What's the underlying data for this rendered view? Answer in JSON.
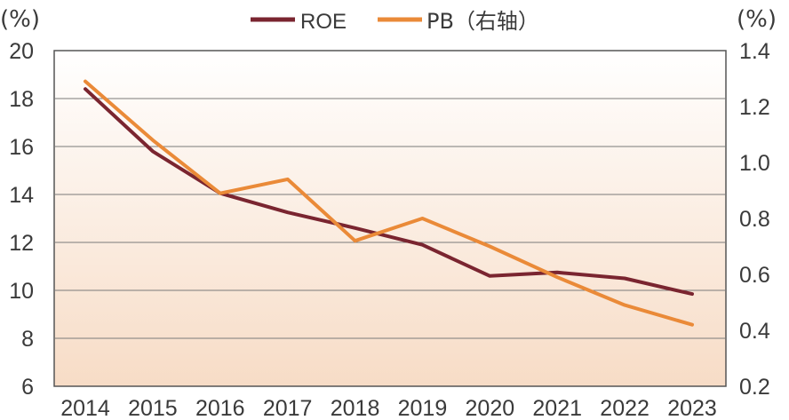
{
  "chart_data": {
    "type": "line",
    "left_unit": "(%)",
    "right_unit": "(%)",
    "categories": [
      "2014",
      "2015",
      "2016",
      "2017",
      "2018",
      "2019",
      "2020",
      "2021",
      "2022",
      "2023"
    ],
    "y_left": {
      "ylim": [
        6,
        20
      ],
      "ticks": [
        "20",
        "18",
        "16",
        "14",
        "12",
        "10",
        "8",
        "6"
      ]
    },
    "y_right": {
      "ylim": [
        0.2,
        1.4
      ],
      "ticks": [
        "1.4",
        "1.2",
        "1.0",
        "0.8",
        "0.6",
        "0.4",
        "0.2"
      ]
    },
    "series": [
      {
        "name": "ROE",
        "axis": "left",
        "color": "#7a2530",
        "values": [
          18.4,
          15.8,
          14.05,
          13.25,
          12.6,
          11.9,
          10.6,
          10.75,
          10.5,
          9.85
        ]
      },
      {
        "name": "PB（右轴）",
        "axis": "right",
        "color": "#ea8a38",
        "values": [
          1.29,
          1.08,
          0.89,
          0.94,
          0.72,
          0.8,
          0.7,
          0.59,
          0.49,
          0.42
        ]
      }
    ],
    "grid": true,
    "legend_position": "top-center",
    "plot_background": {
      "top": "#ffffff",
      "bottom": "#f7dcc6"
    }
  }
}
